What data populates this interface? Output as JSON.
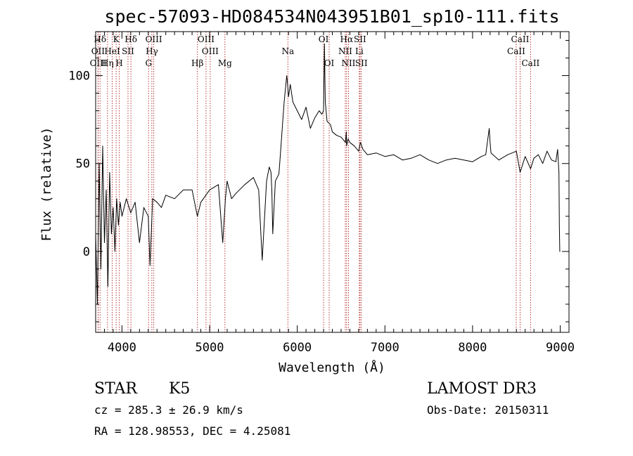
{
  "chart_data": {
    "type": "line",
    "title": "spec-57093-HD084534N043951B01_sp10-111.fits",
    "xlabel": "Wavelength (Å)",
    "ylabel": "Flux (relative)",
    "xlim": [
      3700,
      9100
    ],
    "ylim": [
      -46,
      125
    ],
    "xticks": [
      4000,
      5000,
      6000,
      7000,
      8000,
      9000
    ],
    "yticks": [
      0,
      50,
      100
    ],
    "series": [
      {
        "name": "flux",
        "x": [
          3700,
          3720,
          3740,
          3760,
          3780,
          3800,
          3820,
          3840,
          3860,
          3880,
          3900,
          3920,
          3940,
          3960,
          3980,
          4000,
          4050,
          4100,
          4150,
          4200,
          4250,
          4300,
          4320,
          4350,
          4400,
          4450,
          4500,
          4600,
          4700,
          4800,
          4860,
          4900,
          5000,
          5100,
          5150,
          5180,
          5200,
          5250,
          5300,
          5400,
          5500,
          5560,
          5600,
          5650,
          5680,
          5700,
          5710,
          5720,
          5750,
          5790,
          5800,
          5850,
          5880,
          5890,
          5900,
          5920,
          5950,
          6000,
          6050,
          6100,
          6150,
          6200,
          6250,
          6280,
          6300,
          6310,
          6320,
          6340,
          6380,
          6400,
          6450,
          6500,
          6550,
          6560,
          6563,
          6580,
          6600,
          6650,
          6700,
          6720,
          6750,
          6800,
          6900,
          7000,
          7100,
          7200,
          7300,
          7400,
          7500,
          7600,
          7700,
          7800,
          7900,
          8000,
          8100,
          8150,
          8190,
          8200,
          8210,
          8300,
          8400,
          8500,
          8542,
          8600,
          8662,
          8700,
          8750,
          8800,
          8850,
          8900,
          8950,
          8970,
          8985,
          8990,
          8995,
          9000
        ],
        "y": [
          10,
          -30,
          50,
          -10,
          60,
          5,
          35,
          -20,
          45,
          10,
          25,
          0,
          30,
          15,
          28,
          20,
          30,
          22,
          28,
          5,
          25,
          20,
          -8,
          30,
          28,
          25,
          32,
          30,
          35,
          35,
          20,
          28,
          35,
          38,
          5,
          30,
          40,
          30,
          33,
          38,
          42,
          35,
          -5,
          40,
          48,
          45,
          35,
          10,
          40,
          44,
          50,
          85,
          100,
          95,
          88,
          95,
          85,
          80,
          75,
          82,
          70,
          76,
          80,
          78,
          80,
          118,
          85,
          74,
          72,
          68,
          66,
          65,
          62,
          68,
          60,
          64,
          62,
          60,
          57,
          62,
          58,
          55,
          56,
          54,
          55,
          52,
          53,
          55,
          52,
          50,
          52,
          53,
          52,
          51,
          54,
          55,
          70,
          62,
          56,
          52,
          55,
          57,
          45,
          54,
          47,
          53,
          55,
          50,
          57,
          52,
          51,
          58,
          45,
          15,
          0,
          0
        ]
      }
    ],
    "spectral_lines": [
      {
        "name": "Hδ",
        "wave": 3750,
        "row": 0
      },
      {
        "name": "OII",
        "wave": 3727,
        "row": 1
      },
      {
        "name": "OIII",
        "wave": 3729,
        "row": 2
      },
      {
        "name": "Hη",
        "wave": 3835,
        "row": 2
      },
      {
        "name": "HeI",
        "wave": 3889,
        "row": 1
      },
      {
        "name": "K",
        "wave": 3934,
        "row": 0
      },
      {
        "name": "SII",
        "wave": 4069,
        "row": 1
      },
      {
        "name": "H",
        "wave": 3969,
        "row": 2
      },
      {
        "name": "Hδ",
        "wave": 4102,
        "row": 0
      },
      {
        "name": "OIII",
        "wave": 4363,
        "row": 0
      },
      {
        "name": "Hγ",
        "wave": 4341,
        "row": 1
      },
      {
        "name": "G",
        "wave": 4304,
        "row": 2
      },
      {
        "name": "Hβ",
        "wave": 4861,
        "row": 2
      },
      {
        "name": "OIII",
        "wave": 4959,
        "row": 0
      },
      {
        "name": "OIII",
        "wave": 5007,
        "row": 1
      },
      {
        "name": "Mg",
        "wave": 5175,
        "row": 2
      },
      {
        "name": "Na",
        "wave": 5893,
        "row": 1
      },
      {
        "name": "OI",
        "wave": 6300,
        "row": 0
      },
      {
        "name": "OI",
        "wave": 6364,
        "row": 2
      },
      {
        "name": "Hα",
        "wave": 6563,
        "row": 0
      },
      {
        "name": "SII",
        "wave": 6716,
        "row": 0
      },
      {
        "name": "NII",
        "wave": 6548,
        "row": 1
      },
      {
        "name": "Li",
        "wave": 6708,
        "row": 1
      },
      {
        "name": "NII",
        "wave": 6584,
        "row": 2
      },
      {
        "name": "SII",
        "wave": 6731,
        "row": 2
      },
      {
        "name": "CaII",
        "wave": 8542,
        "row": 0
      },
      {
        "name": "CaII",
        "wave": 8498,
        "row": 1
      },
      {
        "name": "CaII",
        "wave": 8662,
        "row": 2
      }
    ]
  },
  "info": {
    "object_class": "STAR",
    "subclass": "K5",
    "survey": "LAMOST DR3",
    "cz": "cz = 285.3 ± 26.9 km/s",
    "obs_date": "Obs-Date: 20150311",
    "coords": "RA = 128.98553, DEC =   4.25081"
  }
}
